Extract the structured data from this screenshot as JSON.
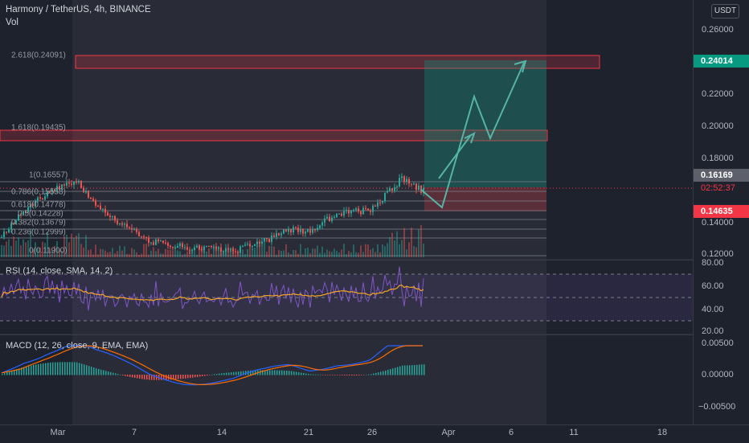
{
  "header": {
    "symbol_line": "Harmony / TetherUS, 4h, BINANCE",
    "volume_label": "Vol",
    "currency_button": "USDT"
  },
  "price_axis": {
    "labels": [
      "0.26000",
      "0.22000",
      "0.20000",
      "0.18000",
      "0.14000",
      "0.12000"
    ],
    "last_price": "0.16169",
    "countdown": "02:52:37",
    "target_price": "0.24014",
    "stop_price": "0.14635"
  },
  "fib_levels": [
    "2.618(0.24091)",
    "1.618(0.19435)",
    "1(0.16557)",
    "0.786(0.15558)",
    "0.618(0.14778)",
    "0.5(0.14228)",
    "0.382(0.13679)",
    "0.236(0.12999)",
    "0(0.11900)"
  ],
  "rsi": {
    "title": "RSI (14, close, SMA, 14, 2)",
    "labels": [
      "80.00",
      "60.00",
      "40.00",
      "20.00"
    ]
  },
  "macd": {
    "title": "MACD (12, 26, close, 9, EMA, EMA)",
    "labels": [
      "0.00500",
      "0.00000",
      "−0.00500"
    ]
  },
  "time_axis": {
    "labels": [
      "Mar",
      "7",
      "14",
      "21",
      "26",
      "Apr",
      "6",
      "11",
      "18"
    ]
  },
  "colors": {
    "background": "#1e222d",
    "up_candle": "#26a69a",
    "down_candle": "#ef5350",
    "fib_zone": "#f23645",
    "target_zone": "#089981",
    "rsi_line": "#7e57c2",
    "macd_line": "#2962ff",
    "signal_line": "#ff6d00"
  }
}
